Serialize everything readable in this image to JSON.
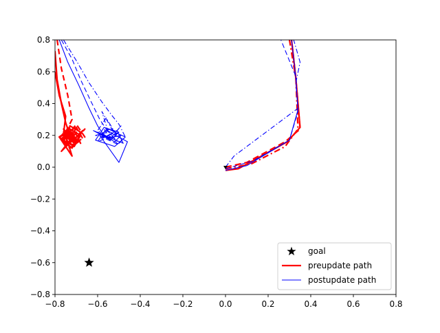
{
  "chart_data": {
    "type": "line",
    "xlim": [
      -0.8,
      0.8
    ],
    "ylim": [
      -0.8,
      0.8
    ],
    "x_ticks": [
      -0.8,
      -0.6,
      -0.4,
      -0.2,
      0.0,
      0.2,
      0.4,
      0.6,
      0.8
    ],
    "y_ticks": [
      -0.8,
      -0.6,
      -0.4,
      -0.2,
      0.0,
      0.2,
      0.4,
      0.6,
      0.8
    ],
    "x_tick_labels": [
      "−0.8",
      "−0.6",
      "−0.4",
      "−0.2",
      "0.0",
      "0.2",
      "0.4",
      "0.6",
      "0.8"
    ],
    "y_tick_labels": [
      "−0.8",
      "−0.6",
      "−0.4",
      "−0.2",
      "0.0",
      "0.2",
      "0.4",
      "0.6",
      "0.8"
    ],
    "grid": false,
    "legend_position": "lower-right",
    "legend": [
      {
        "label": "goal",
        "marker": "star",
        "color": "#000000"
      },
      {
        "label": "preupdate path",
        "color": "#ff0000",
        "style": "solid-thick"
      },
      {
        "label": "postupdate path",
        "color": "#0000ff",
        "style": "solid-thin"
      }
    ],
    "goal": {
      "x": -0.64,
      "y": -0.6
    },
    "series": [
      {
        "name": "preupdate path",
        "color": "#ff0000",
        "width": 2.2,
        "dash": "",
        "x": [
          0.0,
          0.06,
          0.29,
          0.35,
          0.33,
          0.31
        ],
        "y": [
          -0.02,
          -0.01,
          0.16,
          0.25,
          0.56,
          0.8
        ]
      },
      {
        "name": "preupdate path",
        "color": "#ff0000",
        "width": 2.2,
        "dash": "9,5",
        "x": [
          0.0,
          0.1,
          0.28,
          0.35,
          0.33,
          0.31
        ],
        "y": [
          0.0,
          0.03,
          0.16,
          0.24,
          0.56,
          0.8
        ]
      },
      {
        "name": "preupdate path",
        "color": "#ff0000",
        "width": 2.2,
        "dash": "9,4,2,4",
        "x": [
          0.0,
          0.12,
          0.28,
          0.34,
          0.33,
          0.3
        ],
        "y": [
          -0.01,
          0.02,
          0.13,
          0.24,
          0.56,
          0.8
        ]
      },
      {
        "name": "postupdate path",
        "color": "#0000ff",
        "width": 1.1,
        "dash": "",
        "x": [
          0.0,
          0.1,
          0.3,
          0.34,
          0.33,
          0.31
        ],
        "y": [
          -0.02,
          0.01,
          0.17,
          0.36,
          0.56,
          0.8
        ]
      },
      {
        "name": "postupdate path",
        "color": "#0000ff",
        "width": 1.1,
        "dash": "7,4",
        "x": [
          0.0,
          0.13,
          0.3,
          0.34,
          0.33,
          0.26
        ],
        "y": [
          -0.01,
          0.04,
          0.17,
          0.35,
          0.57,
          0.8
        ]
      },
      {
        "name": "postupdate path",
        "color": "#0000ff",
        "width": 1.1,
        "dash": "7,3,1.5,3",
        "x": [
          0.0,
          0.04,
          0.34,
          0.33,
          0.35,
          0.32
        ],
        "y": [
          0.0,
          0.07,
          0.37,
          0.53,
          0.66,
          0.8
        ]
      },
      {
        "name": "preupdate path",
        "color": "#ff0000",
        "width": 2.2,
        "dash": "",
        "x": [
          -0.8,
          -0.79,
          -0.77,
          -0.75,
          -0.73,
          -0.74,
          -0.76,
          -0.72,
          -0.7,
          -0.74,
          -0.76,
          -0.71,
          -0.68,
          -0.73,
          -0.75,
          -0.7,
          -0.67,
          -0.72,
          -0.77,
          -0.73,
          -0.69,
          -0.72,
          -0.76,
          -0.71,
          -0.68,
          -0.73,
          -0.78,
          -0.74,
          -0.7,
          -0.72
        ],
        "y": [
          0.73,
          0.55,
          0.4,
          0.28,
          0.2,
          0.25,
          0.18,
          0.22,
          0.15,
          0.2,
          0.24,
          0.17,
          0.22,
          0.26,
          0.14,
          0.19,
          0.23,
          0.12,
          0.18,
          0.22,
          0.16,
          0.21,
          0.17,
          0.13,
          0.2,
          0.24,
          0.19,
          0.15,
          0.22,
          0.18
        ]
      },
      {
        "name": "preupdate path",
        "color": "#ff0000",
        "width": 2.2,
        "dash": "8,5",
        "x": [
          -0.79,
          -0.77,
          -0.74,
          -0.72,
          -0.75,
          -0.69,
          -0.66,
          -0.72,
          -0.76,
          -0.7,
          -0.67,
          -0.73,
          -0.78,
          -0.71,
          -0.68,
          -0.74,
          -0.7,
          -0.66,
          -0.72,
          -0.77,
          -0.71
        ],
        "y": [
          0.8,
          0.62,
          0.45,
          0.3,
          0.22,
          0.19,
          0.24,
          0.16,
          0.2,
          0.25,
          0.18,
          0.12,
          0.19,
          0.23,
          0.15,
          0.2,
          0.27,
          0.19,
          0.14,
          0.21,
          0.18
        ]
      },
      {
        "name": "preupdate path",
        "color": "#ff0000",
        "width": 2.2,
        "dash": "",
        "x": [
          -0.8,
          -0.78,
          -0.75,
          -0.76,
          -0.73,
          -0.77,
          -0.71,
          -0.74,
          -0.69,
          -0.75,
          -0.72,
          -0.78,
          -0.7,
          -0.73,
          -0.76,
          -0.71
        ],
        "y": [
          0.6,
          0.45,
          0.32,
          0.21,
          0.17,
          0.1,
          0.18,
          0.23,
          0.16,
          0.2,
          0.07,
          0.19,
          0.25,
          0.17,
          0.22,
          0.15
        ]
      },
      {
        "name": "postupdate path",
        "color": "#0000ff",
        "width": 1.1,
        "dash": "",
        "x": [
          -0.78,
          -0.74,
          -0.69,
          -0.64,
          -0.6,
          -0.57,
          -0.62,
          -0.54,
          -0.5,
          -0.57,
          -0.61,
          -0.52,
          -0.47,
          -0.55,
          -0.59,
          -0.5,
          -0.46,
          -0.53,
          -0.58,
          -0.51,
          -0.48,
          -0.55,
          -0.6,
          -0.52,
          -0.49,
          -0.56
        ],
        "y": [
          0.8,
          0.66,
          0.52,
          0.37,
          0.26,
          0.2,
          0.23,
          0.17,
          0.22,
          0.25,
          0.17,
          0.13,
          0.19,
          0.24,
          0.2,
          0.03,
          0.16,
          0.21,
          0.18,
          0.23,
          0.15,
          0.19,
          0.22,
          0.16,
          0.2,
          0.18
        ]
      },
      {
        "name": "postupdate path",
        "color": "#0000ff",
        "width": 1.1,
        "dash": "7,4",
        "x": [
          -0.77,
          -0.72,
          -0.68,
          -0.63,
          -0.59,
          -0.55,
          -0.61,
          -0.52,
          -0.56,
          -0.6,
          -0.51,
          -0.54,
          -0.58,
          -0.5,
          -0.55
        ],
        "y": [
          0.8,
          0.68,
          0.55,
          0.41,
          0.3,
          0.22,
          0.2,
          0.18,
          0.24,
          0.16,
          0.21,
          0.25,
          0.19,
          0.14,
          0.2
        ]
      },
      {
        "name": "postupdate path",
        "color": "#0000ff",
        "width": 1.1,
        "dash": "7,3,1.5,3",
        "x": [
          -0.76,
          -0.7,
          -0.64,
          -0.58,
          -0.53,
          -0.5,
          -0.47,
          -0.5,
          -0.55,
          -0.58,
          -0.52,
          -0.49,
          -0.54,
          -0.6,
          -0.56,
          -0.51,
          -0.57,
          -0.55
        ],
        "y": [
          0.8,
          0.67,
          0.53,
          0.41,
          0.32,
          0.27,
          0.19,
          0.15,
          0.22,
          0.35,
          0.21,
          0.26,
          0.18,
          0.23,
          0.31,
          0.2,
          0.24,
          0.2
        ]
      }
    ]
  }
}
